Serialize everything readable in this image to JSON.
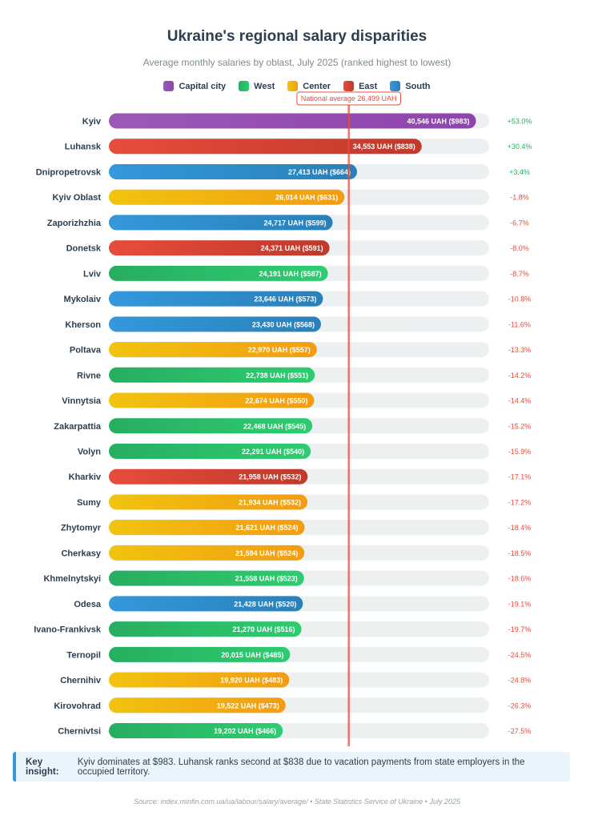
{
  "chart_data": {
    "type": "bar",
    "orientation": "horizontal",
    "title": "Ukraine's regional salary disparities",
    "subtitle": "Average monthly salaries by oblast, July 2025 (ranked highest to lowest)",
    "legend": [
      {
        "name": "Capital city",
        "key": "capital"
      },
      {
        "name": "West",
        "key": "west"
      },
      {
        "name": "Center",
        "key": "center"
      },
      {
        "name": "East",
        "key": "east"
      },
      {
        "name": "South",
        "key": "south"
      }
    ],
    "colors": {
      "capital": [
        "#9b59b6",
        "#8e44ad"
      ],
      "west": [
        "#27ae60",
        "#2ecc71"
      ],
      "center": [
        "#f1c40f",
        "#f39c12"
      ],
      "east": [
        "#e74c3c",
        "#c0392b"
      ],
      "south": [
        "#3498db",
        "#2980b9"
      ]
    },
    "reference_line": {
      "value": 26499,
      "label": "National average 26,499 UAH"
    },
    "xlim": [
      0,
      42000
    ],
    "rows": [
      {
        "name": "Kyiv",
        "region": "capital",
        "value": 40546,
        "label": "40,546 UAH ($983)",
        "pct": "+53.0%"
      },
      {
        "name": "Luhansk",
        "region": "east",
        "value": 34553,
        "label": "34,553 UAH ($838)",
        "pct": "+30.4%"
      },
      {
        "name": "Dnipropetrovsk",
        "region": "south",
        "value": 27413,
        "label": "27,413 UAH ($664)",
        "pct": "+3.4%"
      },
      {
        "name": "Kyiv Oblast",
        "region": "center",
        "value": 26014,
        "label": "26,014 UAH ($631)",
        "pct": "-1.8%"
      },
      {
        "name": "Zaporizhzhia",
        "region": "south",
        "value": 24717,
        "label": "24,717 UAH ($599)",
        "pct": "-6.7%"
      },
      {
        "name": "Donetsk",
        "region": "east",
        "value": 24371,
        "label": "24,371 UAH ($591)",
        "pct": "-8.0%"
      },
      {
        "name": "Lviv",
        "region": "west",
        "value": 24191,
        "label": "24,191 UAH ($587)",
        "pct": "-8.7%"
      },
      {
        "name": "Mykolaiv",
        "region": "south",
        "value": 23646,
        "label": "23,646 UAH ($573)",
        "pct": "-10.8%"
      },
      {
        "name": "Kherson",
        "region": "south",
        "value": 23430,
        "label": "23,430 UAH ($568)",
        "pct": "-11.6%"
      },
      {
        "name": "Poltava",
        "region": "center",
        "value": 22970,
        "label": "22,970 UAH ($557)",
        "pct": "-13.3%"
      },
      {
        "name": "Rivne",
        "region": "west",
        "value": 22738,
        "label": "22,738 UAH ($551)",
        "pct": "-14.2%"
      },
      {
        "name": "Vinnytsia",
        "region": "center",
        "value": 22674,
        "label": "22,674 UAH ($550)",
        "pct": "-14.4%"
      },
      {
        "name": "Zakarpattia",
        "region": "west",
        "value": 22468,
        "label": "22,468 UAH ($545)",
        "pct": "-15.2%"
      },
      {
        "name": "Volyn",
        "region": "west",
        "value": 22291,
        "label": "22,291 UAH ($540)",
        "pct": "-15.9%"
      },
      {
        "name": "Kharkiv",
        "region": "east",
        "value": 21958,
        "label": "21,958 UAH ($532)",
        "pct": "-17.1%"
      },
      {
        "name": "Sumy",
        "region": "center",
        "value": 21934,
        "label": "21,934 UAH ($532)",
        "pct": "-17.2%"
      },
      {
        "name": "Zhytomyr",
        "region": "center",
        "value": 21621,
        "label": "21,621 UAH ($524)",
        "pct": "-18.4%"
      },
      {
        "name": "Cherkasy",
        "region": "center",
        "value": 21594,
        "label": "21,594 UAH ($524)",
        "pct": "-18.5%"
      },
      {
        "name": "Khmelnytskyi",
        "region": "west",
        "value": 21558,
        "label": "21,558 UAH ($523)",
        "pct": "-18.6%"
      },
      {
        "name": "Odesa",
        "region": "south",
        "value": 21428,
        "label": "21,428 UAH ($520)",
        "pct": "-19.1%"
      },
      {
        "name": "Ivano-Frankivsk",
        "region": "west",
        "value": 21270,
        "label": "21,270 UAH ($516)",
        "pct": "-19.7%"
      },
      {
        "name": "Ternopil",
        "region": "west",
        "value": 20015,
        "label": "20,015 UAH ($485)",
        "pct": "-24.5%"
      },
      {
        "name": "Chernihiv",
        "region": "center",
        "value": 19920,
        "label": "19,920 UAH ($483)",
        "pct": "-24.8%"
      },
      {
        "name": "Kirovohrad",
        "region": "center",
        "value": 19522,
        "label": "19,522 UAH ($473)",
        "pct": "-26.3%"
      },
      {
        "name": "Chernivtsi",
        "region": "west",
        "value": 19202,
        "label": "19,202 UAH ($466)",
        "pct": "-27.5%"
      }
    ]
  },
  "insight": {
    "heading": "Key insight:",
    "text": "Kyiv dominates at $983. Luhansk ranks second at $838 due to vacation payments from state employers in the occupied territory."
  },
  "source": "Source: index.minfin.com.ua/ua/labour/salary/average/ • State Statistics Service of Ukraine • July 2025",
  "pct_colors": {
    "positive": "#27ae60",
    "negative": "#e74c3c"
  }
}
